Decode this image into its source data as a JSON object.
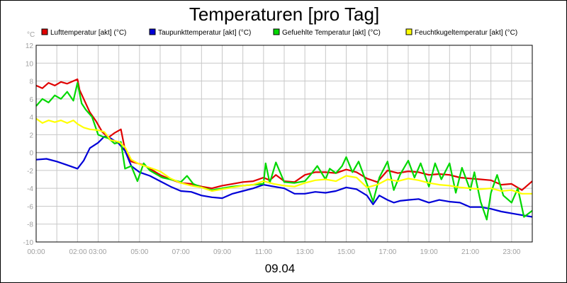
{
  "chart_data": {
    "type": "line",
    "title": "Temperaturen [pro Tag]",
    "date_label": "09.04",
    "y_unit": "°C",
    "ylim": [
      -10,
      12
    ],
    "y_ticks": [
      "12",
      "10",
      "8",
      "6",
      "4",
      "2",
      "0",
      "-2",
      "-4",
      "-6",
      "-8",
      "-10"
    ],
    "xlim_hours": [
      0,
      24
    ],
    "x_tick_labels": [
      "00:00",
      "02:00 03:00",
      "05:00",
      "07:00",
      "09:00",
      "11:00",
      "13:00",
      "15:00",
      "17:00",
      "19:00",
      "21:00",
      "23:00"
    ],
    "x_tick_hours": [
      0,
      3,
      5,
      7,
      9,
      11,
      13,
      15,
      17,
      19,
      21,
      23
    ],
    "grid": true,
    "legend_position": "top",
    "series": [
      {
        "name": "Lufttemperatur [akt] (°C)",
        "color": "#e00000",
        "x": [
          0,
          0.3,
          0.6,
          0.9,
          1.2,
          1.5,
          1.8,
          2.0,
          2.1,
          2.3,
          2.6,
          2.9,
          3.2,
          3.5,
          3.8,
          4.1,
          4.3,
          4.6,
          4.9,
          5.2,
          5.5,
          6.0,
          6.5,
          7.0,
          7.5,
          8.0,
          8.5,
          9.0,
          9.5,
          10.0,
          10.5,
          11.0,
          11.3,
          11.6,
          12.0,
          12.5,
          13.0,
          13.5,
          14.0,
          14.5,
          15.0,
          15.5,
          16.0,
          16.5,
          17.0,
          17.5,
          18.0,
          18.5,
          19.0,
          19.5,
          20.0,
          20.5,
          21.0,
          21.5,
          22.0,
          22.5,
          23.0,
          23.5,
          24.0
        ],
        "values": [
          7.5,
          7.2,
          7.8,
          7.5,
          7.9,
          7.7,
          8.0,
          8.2,
          7.0,
          6.0,
          4.5,
          3.5,
          2.3,
          1.7,
          2.2,
          2.6,
          0.3,
          -1.0,
          -1.2,
          -1.4,
          -1.8,
          -2.5,
          -3.0,
          -3.4,
          -3.5,
          -3.8,
          -4.0,
          -3.7,
          -3.5,
          -3.3,
          -3.2,
          -2.8,
          -3.1,
          -2.5,
          -3.2,
          -3.3,
          -2.5,
          -2.2,
          -2.2,
          -2.3,
          -1.9,
          -2.2,
          -2.9,
          -3.3,
          -2.0,
          -2.3,
          -2.1,
          -2.2,
          -2.5,
          -2.4,
          -2.5,
          -2.8,
          -2.9,
          -3.0,
          -3.1,
          -3.6,
          -3.5,
          -4.2,
          -3.2
        ]
      },
      {
        "name": "Taupunkttemperatur [akt] (°C)",
        "color": "#0000d8",
        "x": [
          0,
          0.5,
          1.0,
          1.5,
          2.0,
          2.3,
          2.6,
          3.0,
          3.3,
          3.6,
          4.0,
          4.3,
          4.6,
          5.0,
          5.5,
          6.0,
          6.5,
          7.0,
          7.5,
          8.0,
          8.5,
          9.0,
          9.5,
          10.0,
          10.5,
          11.0,
          11.5,
          12.0,
          12.5,
          13.0,
          13.5,
          14.0,
          14.5,
          15.0,
          15.5,
          16.0,
          16.3,
          16.6,
          17.0,
          17.3,
          17.6,
          18.0,
          18.5,
          19.0,
          19.5,
          20.0,
          20.5,
          21.0,
          21.5,
          22.0,
          22.5,
          23.0,
          23.5,
          24.0
        ],
        "values": [
          -0.8,
          -0.7,
          -1.0,
          -1.4,
          -1.8,
          -0.9,
          0.5,
          1.1,
          1.8,
          1.6,
          1.0,
          0.2,
          -1.5,
          -2.2,
          -2.6,
          -3.2,
          -3.8,
          -4.3,
          -4.4,
          -4.8,
          -5.0,
          -5.1,
          -4.6,
          -4.3,
          -4.0,
          -3.6,
          -3.8,
          -4.0,
          -4.6,
          -4.6,
          -4.4,
          -4.5,
          -4.3,
          -3.9,
          -4.1,
          -4.8,
          -5.8,
          -4.8,
          -5.3,
          -5.6,
          -5.4,
          -5.3,
          -5.2,
          -5.6,
          -5.3,
          -5.5,
          -5.6,
          -6.1,
          -6.1,
          -6.3,
          -6.6,
          -6.8,
          -7.0,
          -7.2
        ]
      },
      {
        "name": "Gefuehlte Temperatur [akt] (°C)",
        "color": "#00d800",
        "x": [
          0,
          0.3,
          0.6,
          0.9,
          1.2,
          1.5,
          1.8,
          2.0,
          2.2,
          2.4,
          2.7,
          3.0,
          3.2,
          3.5,
          3.8,
          4.1,
          4.3,
          4.6,
          4.9,
          5.2,
          5.5,
          5.8,
          6.1,
          6.5,
          7.0,
          7.3,
          7.6,
          8.0,
          8.5,
          9.0,
          9.5,
          10.0,
          10.5,
          11.0,
          11.1,
          11.3,
          11.6,
          12.0,
          12.5,
          13.0,
          13.3,
          13.6,
          14.0,
          14.2,
          14.5,
          14.8,
          15.0,
          15.3,
          15.6,
          16.0,
          16.3,
          16.6,
          17.0,
          17.3,
          17.6,
          18.0,
          18.3,
          18.6,
          19.0,
          19.3,
          19.6,
          20.0,
          20.3,
          20.6,
          21.0,
          21.2,
          21.5,
          21.8,
          22.0,
          22.3,
          22.6,
          23.0,
          23.3,
          23.6,
          24.0
        ],
        "values": [
          5.2,
          6.0,
          5.6,
          6.4,
          6.0,
          6.8,
          5.8,
          7.8,
          5.5,
          4.8,
          4.0,
          2.0,
          1.8,
          1.6,
          1.0,
          1.2,
          -1.8,
          -1.5,
          -3.2,
          -1.2,
          -2.0,
          -2.4,
          -2.8,
          -3.0,
          -3.3,
          -2.6,
          -3.5,
          -3.9,
          -4.2,
          -4.0,
          -3.8,
          -3.7,
          -3.6,
          -3.5,
          -1.2,
          -3.4,
          -1.1,
          -3.3,
          -3.4,
          -3.2,
          -2.4,
          -1.5,
          -3.0,
          -1.8,
          -2.3,
          -1.5,
          -0.5,
          -2.2,
          -1.0,
          -3.5,
          -5.5,
          -2.8,
          -1.0,
          -4.2,
          -2.5,
          -0.9,
          -2.8,
          -1.2,
          -3.8,
          -1.2,
          -3.0,
          -1.2,
          -4.5,
          -1.7,
          -4.2,
          -2.2,
          -5.5,
          -7.5,
          -4.5,
          -2.5,
          -4.8,
          -5.6,
          -4.0,
          -7.2,
          -6.5
        ]
      },
      {
        "name": "Feuchtkugeltemperatur [akt] (°C)",
        "color": "#ffff00",
        "x": [
          0,
          0.3,
          0.6,
          0.9,
          1.2,
          1.5,
          1.8,
          2.0,
          2.3,
          2.6,
          3.0,
          3.3,
          3.6,
          4.0,
          4.3,
          4.6,
          5.0,
          5.5,
          6.0,
          6.5,
          7.0,
          7.5,
          8.0,
          8.5,
          9.0,
          9.5,
          10.0,
          10.5,
          11.0,
          11.5,
          12.0,
          12.5,
          13.0,
          13.5,
          14.0,
          14.5,
          15.0,
          15.5,
          16.0,
          16.5,
          17.0,
          17.5,
          18.0,
          18.5,
          19.0,
          19.5,
          20.0,
          20.5,
          21.0,
          21.5,
          22.0,
          22.5,
          23.0,
          23.5,
          24.0
        ],
        "values": [
          3.8,
          3.3,
          3.6,
          3.4,
          3.6,
          3.3,
          3.6,
          3.2,
          2.8,
          2.6,
          2.5,
          2.3,
          1.4,
          1.2,
          0.6,
          -0.8,
          -1.3,
          -1.7,
          -2.1,
          -2.9,
          -3.4,
          -3.7,
          -3.9,
          -4.3,
          -4.1,
          -3.9,
          -3.7,
          -3.6,
          -3.2,
          -3.5,
          -3.7,
          -3.8,
          -3.4,
          -3.1,
          -3.0,
          -3.2,
          -2.6,
          -2.8,
          -3.9,
          -3.6,
          -3.0,
          -3.2,
          -2.9,
          -3.1,
          -3.4,
          -3.6,
          -3.7,
          -3.9,
          -4.0,
          -4.1,
          -4.0,
          -4.3,
          -4.2,
          -4.6,
          -4.6
        ]
      }
    ]
  }
}
